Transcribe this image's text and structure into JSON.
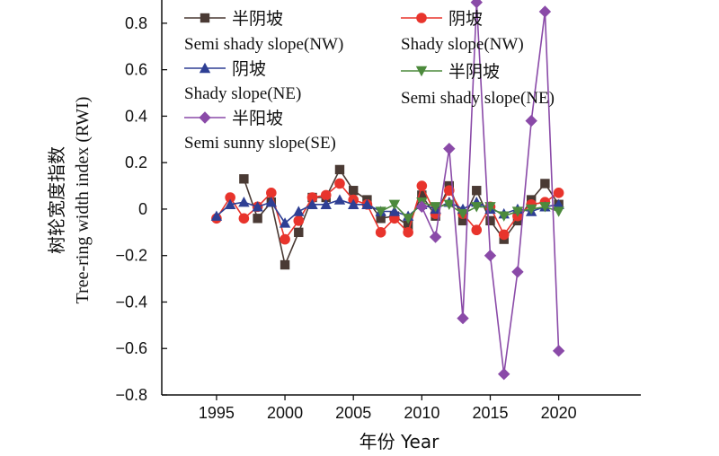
{
  "chart_data": {
    "type": "line",
    "xlabel": "年份 Year",
    "ylabel_cn": "树轮宽度指数",
    "ylabel_en": "Tree-ring width index (RWI)",
    "xlim": [
      1991,
      2026
    ],
    "ylim": [
      -0.8,
      0.9
    ],
    "xticks": [
      1995,
      2000,
      2005,
      2010,
      2015,
      2020
    ],
    "yticks": [
      -0.8,
      -0.6,
      -0.4,
      -0.2,
      0,
      0.2,
      0.4,
      0.6,
      0.8
    ],
    "ytick_labels": [
      "−0.8",
      "−0.6",
      "−0.4",
      "−0.2",
      "0",
      "0.2",
      "0.4",
      "0.6",
      "0.8"
    ],
    "x": [
      1995,
      1996,
      1997,
      1998,
      1999,
      2000,
      2001,
      2002,
      2003,
      2004,
      2005,
      2006,
      2007,
      2008,
      2009,
      2010,
      2011,
      2012,
      2013,
      2014,
      2015,
      2016,
      2017,
      2018,
      2019,
      2020
    ],
    "series": [
      {
        "name_cn": "半阴坡",
        "name_en": "Semi shady slope(NW)",
        "color": "#4a3a34",
        "marker": "square",
        "values": [
          null,
          null,
          0.13,
          -0.04,
          0.03,
          -0.24,
          -0.1,
          0.05,
          0.05,
          0.17,
          0.08,
          0.04,
          -0.04,
          -0.03,
          -0.07,
          0.06,
          -0.03,
          0.1,
          -0.05,
          0.08,
          -0.05,
          -0.13,
          -0.05,
          0.04,
          0.11,
          0.02
        ]
      },
      {
        "name_cn": "阴坡",
        "name_en": "Shady slope(NW)",
        "color": "#e8342c",
        "marker": "circle",
        "values": [
          -0.04,
          0.05,
          -0.04,
          0.01,
          0.07,
          -0.13,
          -0.05,
          0.05,
          0.06,
          0.11,
          0.04,
          0.02,
          -0.1,
          -0.04,
          -0.1,
          0.1,
          -0.02,
          0.08,
          -0.02,
          -0.09,
          0.01,
          -0.11,
          -0.03,
          0.02,
          0.03,
          0.07
        ]
      },
      {
        "name_cn": "阴坡",
        "name_en": "Shady slope(NE)",
        "color": "#2e3f94",
        "marker": "triangle-up",
        "values": [
          -0.03,
          0.02,
          0.03,
          0.01,
          0.03,
          -0.06,
          -0.01,
          0.02,
          0.02,
          0.04,
          0.02,
          0.02,
          -0.01,
          -0.01,
          -0.03,
          0.02,
          0.0,
          0.03,
          0.0,
          0.03,
          0.0,
          -0.02,
          0.0,
          -0.01,
          0.01,
          0.02
        ]
      },
      {
        "name_cn": "半阴坡",
        "name_en": "Semi shady slope(NE)",
        "color": "#4c8a3c",
        "marker": "triangle-down",
        "values": [
          null,
          null,
          null,
          null,
          null,
          null,
          null,
          null,
          null,
          null,
          null,
          null,
          -0.01,
          0.02,
          -0.04,
          0.03,
          0.01,
          0.02,
          -0.02,
          0.01,
          0.01,
          -0.03,
          -0.01,
          0.0,
          0.01,
          -0.01
        ]
      },
      {
        "name_cn": "半阳坡",
        "name_en": "Semi sunny slope(SE)",
        "color": "#8a4aa8",
        "marker": "diamond",
        "values": [
          null,
          null,
          null,
          null,
          null,
          null,
          null,
          null,
          null,
          null,
          null,
          null,
          null,
          null,
          null,
          0.01,
          -0.12,
          0.26,
          -0.47,
          0.89,
          -0.2,
          -0.71,
          -0.27,
          0.38,
          0.85,
          -0.61
        ]
      }
    ]
  }
}
